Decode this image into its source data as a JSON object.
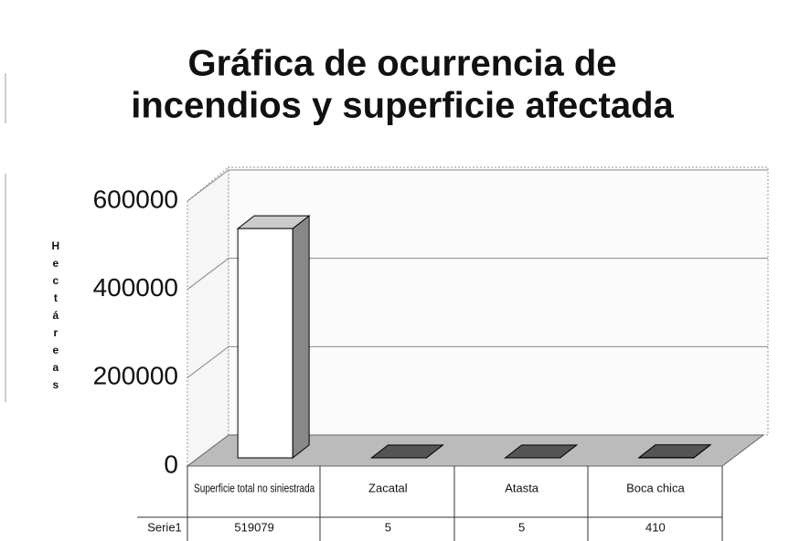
{
  "chart_data": {
    "type": "bar3d",
    "title": [
      "Gráfica de ocurrencia de",
      "incendios y superficie afectada"
    ],
    "y_label": "Hectáreas",
    "categories": [
      "Superficie total no siniestrada",
      "Zacatal",
      "Atasta",
      "Boca chica"
    ],
    "series": [
      {
        "name": "Serie1",
        "color": "#ffffff",
        "values": [
          519079,
          5,
          5,
          410
        ]
      }
    ],
    "ylim": [
      0,
      600000
    ],
    "yticks": [
      0,
      200000,
      400000,
      600000
    ],
    "grid": true
  }
}
